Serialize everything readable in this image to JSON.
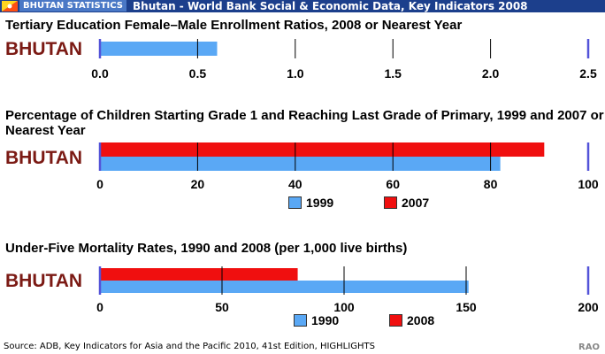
{
  "header": {
    "tag": "BHUTAN STATISTICS",
    "title": "Bhutan - World Bank Social & Economic Data, Key Indicators 2008"
  },
  "colors": {
    "bar_blue": "#5aa8f5",
    "bar_red": "#f00f0f",
    "country_label": "#7b1a14",
    "axis_line": "#5353d8",
    "header_bg": "#1c3f8c"
  },
  "icons": [
    "bhutan-flag-icon"
  ],
  "chart_data": [
    {
      "type": "bar",
      "orientation": "horizontal",
      "title": "Tertiary Education Female–Male Enrollment Ratios, 2008 or Nearest Year",
      "categories": [
        "BHUTAN"
      ],
      "series": [
        {
          "values": [
            0.6
          ],
          "color": "#5aa8f5"
        }
      ],
      "xlim": [
        0,
        2.5
      ],
      "ticks": [
        "0.0",
        "0.5",
        "1.0",
        "1.5",
        "2.0",
        "2.5"
      ],
      "grid": true,
      "legend": null
    },
    {
      "type": "bar",
      "orientation": "horizontal",
      "title": "Percentage of Children Starting Grade 1 and Reaching Last Grade of Primary, 1999 and 2007 or Nearest Year",
      "categories": [
        "BHUTAN"
      ],
      "series": [
        {
          "name": "1999",
          "values": [
            82
          ],
          "color": "#5aa8f5"
        },
        {
          "name": "2007",
          "values": [
            91
          ],
          "color": "#f00f0f"
        }
      ],
      "xlim": [
        0,
        100
      ],
      "ticks": [
        "0",
        "20",
        "40",
        "60",
        "80",
        "100"
      ],
      "grid": true,
      "legend": "bottom"
    },
    {
      "type": "bar",
      "orientation": "horizontal",
      "title": "Under-Five Mortality Rates, 1990 and 2008 (per 1,000 live births)",
      "categories": [
        "BHUTAN"
      ],
      "series": [
        {
          "name": "1990",
          "values": [
            151
          ],
          "color": "#5aa8f5"
        },
        {
          "name": "2008",
          "values": [
            81
          ],
          "color": "#f00f0f"
        }
      ],
      "xlim": [
        0,
        200
      ],
      "ticks": [
        "0",
        "50",
        "100",
        "150",
        "200"
      ],
      "grid": true,
      "legend": "bottom"
    }
  ],
  "footer": {
    "source": "Source: ADB, Key Indicators for Asia and the Pacific 2010, 41st Edition, HIGHLIGHTS",
    "credit": "RAO"
  }
}
